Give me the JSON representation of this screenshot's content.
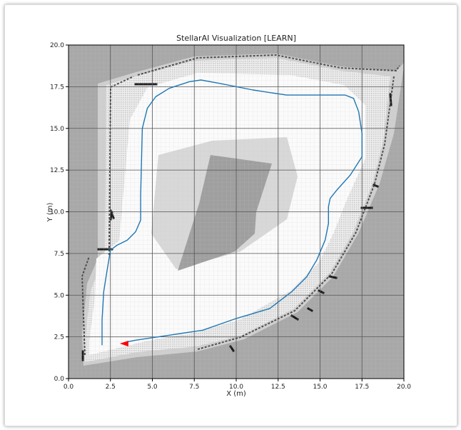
{
  "chart_data": {
    "type": "line",
    "title": "StellarAI Visualization [LEARN]",
    "xlabel": "X (m)",
    "ylabel": "Y (m)",
    "xlim": [
      0,
      20
    ],
    "ylim": [
      0,
      20
    ],
    "xticks": [
      "0.0",
      "2.5",
      "5.0",
      "7.5",
      "10.0",
      "12.5",
      "15.0",
      "17.5",
      "20.0"
    ],
    "yticks": [
      "0.0",
      "2.5",
      "5.0",
      "7.5",
      "10.0",
      "12.5",
      "15.0",
      "17.5",
      "20.0"
    ],
    "grid": true,
    "background": "occupancy-grid-map",
    "series": [
      {
        "color": "#1f77b4",
        "x": [
          2.0,
          2.0,
          2.1,
          2.3,
          2.5,
          2.9,
          3.5,
          4.0,
          4.3,
          4.3,
          4.4,
          4.7,
          5.2,
          6.0,
          7.2,
          7.9,
          9.0,
          11.0,
          13.0,
          15.0,
          16.5,
          17.0,
          17.3,
          17.5,
          17.5,
          16.8,
          16.0,
          15.6,
          15.5,
          15.5,
          15.3,
          14.8,
          14.2,
          13.3,
          12.0,
          10.0,
          8.0,
          6.0,
          4.0,
          3.5
        ],
        "y": [
          2.0,
          3.5,
          5.2,
          6.5,
          7.7,
          8.0,
          8.3,
          8.8,
          9.5,
          11.0,
          15.0,
          16.2,
          16.9,
          17.4,
          17.8,
          17.9,
          17.7,
          17.3,
          17.0,
          17.0,
          17.0,
          16.8,
          16.0,
          14.7,
          13.3,
          12.2,
          11.3,
          10.8,
          10.3,
          9.3,
          8.3,
          7.1,
          6.1,
          5.2,
          4.2,
          3.6,
          2.9,
          2.6,
          2.3,
          2.2
        ]
      }
    ],
    "annotations": [
      {
        "type": "arrow",
        "color": "#ff0000",
        "x": 3.4,
        "y": 2.1,
        "direction": "west"
      }
    ]
  }
}
